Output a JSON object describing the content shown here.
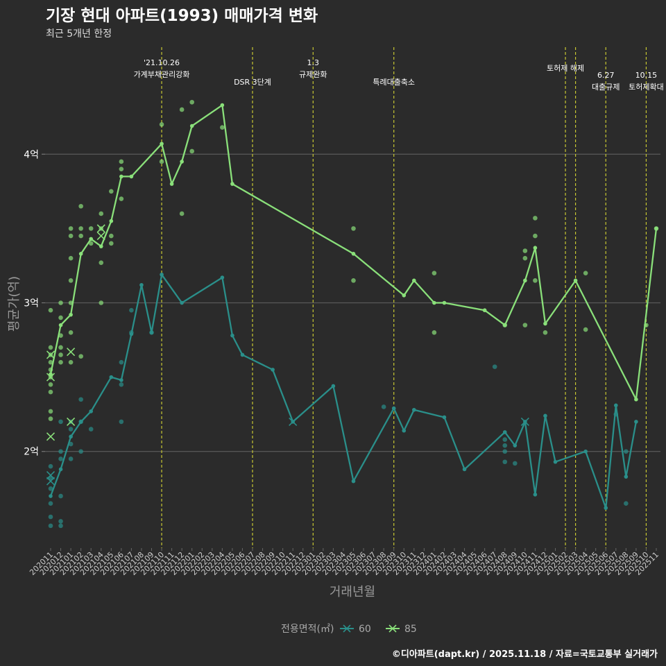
{
  "chart_data": {
    "type": "line",
    "title": "기장 현대 아파트(1993) 매매가격 변화",
    "subtitle": "최근 5개년 한정",
    "xlabel": "거래년월",
    "ylabel": "평균가(억)",
    "caption": "©디아파트(dapt.kr) / 2025.11.18 / 자료=국토교통부 실거래가",
    "legend_title": "전용면적(㎡)",
    "legend_position": "bottom",
    "ylim": [
      1.35,
      4.72
    ],
    "y_ticks": [
      2,
      3,
      4
    ],
    "y_tick_labels": [
      "2억",
      "3억",
      "4억"
    ],
    "months": [
      "202011",
      "202012",
      "202101",
      "202102",
      "202103",
      "202104",
      "202105",
      "202106",
      "202107",
      "202108",
      "202109",
      "202110",
      "202111",
      "202112",
      "202201",
      "202202",
      "202203",
      "202204",
      "202205",
      "202206",
      "202207",
      "202208",
      "202209",
      "202210",
      "202211",
      "202212",
      "202301",
      "202302",
      "202303",
      "202304",
      "202305",
      "202306",
      "202307",
      "202308",
      "202309",
      "202310",
      "202311",
      "202312",
      "202401",
      "202402",
      "202403",
      "202404",
      "202405",
      "202406",
      "202407",
      "202408",
      "202409",
      "202410",
      "202411",
      "202412",
      "202501",
      "202502",
      "202503",
      "202504",
      "202505",
      "202506",
      "202507",
      "202508",
      "202509",
      "202510",
      "202511"
    ],
    "series": [
      {
        "name": "60",
        "color": "#2a8f8a",
        "points": [
          [
            0,
            1.7
          ],
          [
            1,
            1.88
          ],
          [
            2,
            2.1
          ],
          [
            3,
            2.2
          ],
          [
            4,
            2.27
          ],
          [
            6,
            2.5
          ],
          [
            7,
            2.48
          ],
          [
            8,
            2.79
          ],
          [
            9,
            3.12
          ],
          [
            10,
            2.8
          ],
          [
            11,
            3.19
          ],
          [
            13,
            3.0
          ],
          [
            17,
            3.17
          ],
          [
            18,
            2.78
          ],
          [
            19,
            2.65
          ],
          [
            22,
            2.55
          ],
          [
            24,
            2.2
          ],
          [
            28,
            2.44
          ],
          [
            30,
            1.8
          ],
          [
            34,
            2.29
          ],
          [
            35,
            2.14
          ],
          [
            36,
            2.28
          ],
          [
            39,
            2.23
          ],
          [
            41,
            1.88
          ],
          [
            45,
            2.13
          ],
          [
            46,
            2.04
          ],
          [
            47,
            2.2
          ],
          [
            48,
            1.71
          ],
          [
            49,
            2.24
          ],
          [
            50,
            1.93
          ],
          [
            53,
            2.0
          ],
          [
            55,
            1.62
          ],
          [
            56,
            2.31
          ],
          [
            57,
            1.83
          ],
          [
            58,
            2.2
          ]
        ]
      },
      {
        "name": "85",
        "color": "#8ae07a",
        "points": [
          [
            0,
            2.52
          ],
          [
            1,
            2.85
          ],
          [
            2,
            2.92
          ],
          [
            3,
            3.33
          ],
          [
            4,
            3.43
          ],
          [
            5,
            3.38
          ],
          [
            6,
            3.55
          ],
          [
            7,
            3.85
          ],
          [
            8,
            3.85
          ],
          [
            11,
            4.07
          ],
          [
            12,
            3.8
          ],
          [
            13,
            3.95
          ],
          [
            14,
            4.19
          ],
          [
            17,
            4.33
          ],
          [
            18,
            3.8
          ],
          [
            30,
            3.33
          ],
          [
            35,
            3.05
          ],
          [
            36,
            3.15
          ],
          [
            38,
            3.0
          ],
          [
            39,
            3.0
          ],
          [
            43,
            2.95
          ],
          [
            45,
            2.85
          ],
          [
            47,
            3.15
          ],
          [
            48,
            3.37
          ],
          [
            49,
            2.86
          ],
          [
            52,
            3.15
          ],
          [
            58,
            2.35
          ],
          [
            60,
            3.5
          ]
        ]
      }
    ],
    "scatter_60": [
      [
        0,
        1.5
      ],
      [
        0,
        1.56
      ],
      [
        0,
        1.65
      ],
      [
        0,
        1.75
      ],
      [
        0,
        1.82
      ],
      [
        0,
        1.9
      ],
      [
        1,
        1.5
      ],
      [
        1,
        1.53
      ],
      [
        1,
        1.7
      ],
      [
        1,
        1.95
      ],
      [
        1,
        2.0
      ],
      [
        1,
        2.2
      ],
      [
        2,
        1.95
      ],
      [
        2,
        2.05
      ],
      [
        2,
        2.15
      ],
      [
        2,
        2.2
      ],
      [
        3,
        2.0
      ],
      [
        3,
        2.2
      ],
      [
        3,
        2.35
      ],
      [
        4,
        2.15
      ],
      [
        7,
        2.2
      ],
      [
        7,
        2.45
      ],
      [
        7,
        2.6
      ],
      [
        8,
        2.95
      ],
      [
        8,
        2.8
      ],
      [
        10,
        2.8
      ],
      [
        33,
        2.3
      ],
      [
        44,
        2.57
      ],
      [
        45,
        2.08
      ],
      [
        45,
        1.93
      ],
      [
        45,
        2.0
      ],
      [
        45,
        2.04
      ],
      [
        46,
        1.92
      ],
      [
        57,
        2.0
      ],
      [
        57,
        1.65
      ],
      [
        56,
        2.25
      ]
    ],
    "scatter_85": [
      [
        0,
        2.4
      ],
      [
        0,
        2.45
      ],
      [
        0,
        2.5
      ],
      [
        0,
        2.55
      ],
      [
        0,
        2.6
      ],
      [
        0,
        2.65
      ],
      [
        0,
        2.7
      ],
      [
        0,
        2.95
      ],
      [
        0,
        2.22
      ],
      [
        0,
        2.27
      ],
      [
        1,
        2.6
      ],
      [
        1,
        2.65
      ],
      [
        1,
        2.7
      ],
      [
        1,
        2.78
      ],
      [
        1,
        2.9
      ],
      [
        1,
        3.0
      ],
      [
        2,
        2.6
      ],
      [
        2,
        2.8
      ],
      [
        2,
        3.0
      ],
      [
        2,
        3.15
      ],
      [
        2,
        3.3
      ],
      [
        2,
        3.45
      ],
      [
        2,
        3.5
      ],
      [
        3,
        2.64
      ],
      [
        3,
        3.45
      ],
      [
        3,
        3.5
      ],
      [
        3,
        3.65
      ],
      [
        4,
        3.4
      ],
      [
        4,
        3.5
      ],
      [
        5,
        3.0
      ],
      [
        5,
        3.27
      ],
      [
        5,
        3.5
      ],
      [
        5,
        3.6
      ],
      [
        6,
        3.4
      ],
      [
        6,
        3.45
      ],
      [
        6,
        3.75
      ],
      [
        7,
        3.7
      ],
      [
        7,
        3.9
      ],
      [
        7,
        3.95
      ],
      [
        11,
        3.95
      ],
      [
        11,
        4.2
      ],
      [
        13,
        3.6
      ],
      [
        13,
        4.3
      ],
      [
        14,
        4.02
      ],
      [
        14,
        4.35
      ],
      [
        17,
        4.18
      ],
      [
        30,
        3.5
      ],
      [
        30,
        3.15
      ],
      [
        38,
        3.2
      ],
      [
        38,
        2.8
      ],
      [
        45,
        2.85
      ],
      [
        47,
        2.85
      ],
      [
        47,
        3.3
      ],
      [
        47,
        3.35
      ],
      [
        48,
        3.57
      ],
      [
        48,
        3.45
      ],
      [
        48,
        3.15
      ],
      [
        49,
        2.8
      ],
      [
        53,
        2.82
      ],
      [
        53,
        3.2
      ],
      [
        59,
        2.85
      ],
      [
        60,
        3.5
      ]
    ],
    "cross_points": [
      {
        "series": "60",
        "x": 0,
        "y": 1.8
      },
      {
        "series": "60",
        "x": 0,
        "y": 1.84
      },
      {
        "series": "60",
        "x": 24,
        "y": 2.2
      },
      {
        "series": "60",
        "x": 47,
        "y": 2.2
      },
      {
        "series": "85",
        "x": 0,
        "y": 2.1
      },
      {
        "series": "85",
        "x": 0,
        "y": 2.5
      },
      {
        "series": "85",
        "x": 0,
        "y": 2.65
      },
      {
        "series": "85",
        "x": 2,
        "y": 2.2
      },
      {
        "series": "85",
        "x": 2,
        "y": 2.67
      },
      {
        "series": "85",
        "x": 5,
        "y": 3.45
      },
      {
        "series": "85",
        "x": 5,
        "y": 3.5
      }
    ],
    "events": [
      {
        "x": 11,
        "lines": [
          "'21.10.26",
          "가계부채관리강화"
        ],
        "level": 0
      },
      {
        "x": 20,
        "lines": [
          "DSR 3단계"
        ],
        "level": 1
      },
      {
        "x": 26,
        "lines": [
          "1.3",
          "규제완화"
        ],
        "level": 0
      },
      {
        "x": 34,
        "lines": [
          "특례대출축소"
        ],
        "level": 1
      },
      {
        "x": 51,
        "lines": [
          "토허제 해제"
        ],
        "level": 2
      },
      {
        "x": 52,
        "lines": [],
        "level": 2
      },
      {
        "x": 55,
        "lines": [
          "6.27",
          "대출규제"
        ],
        "level": 3
      },
      {
        "x": 59,
        "lines": [
          "10.15",
          "토허제확대"
        ],
        "level": 3
      }
    ]
  }
}
